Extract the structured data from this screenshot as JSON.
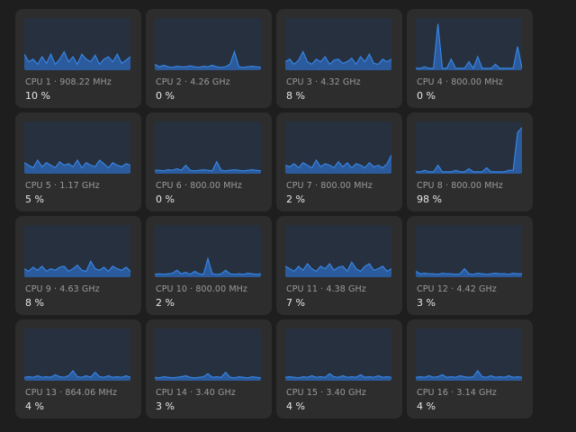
{
  "colors": {
    "background": "#1e1e1e",
    "card": "#2d2d2d",
    "graph_bg": "#27303e",
    "line": "#3584e4",
    "fill": "#2b5b9c"
  },
  "cpus": [
    {
      "label": "CPU 1 · 908.22 MHz",
      "usage": "10 %",
      "history": [
        0.3,
        0.15,
        0.2,
        0.1,
        0.25,
        0.12,
        0.3,
        0.1,
        0.2,
        0.35,
        0.15,
        0.25,
        0.1,
        0.3,
        0.2,
        0.15,
        0.28,
        0.1,
        0.2,
        0.25,
        0.15,
        0.3,
        0.12,
        0.18,
        0.25
      ]
    },
    {
      "label": "CPU 2 · 4.26 GHz",
      "usage": "0 %",
      "history": [
        0.1,
        0.05,
        0.08,
        0.05,
        0.04,
        0.06,
        0.05,
        0.05,
        0.07,
        0.05,
        0.04,
        0.06,
        0.05,
        0.08,
        0.05,
        0.04,
        0.05,
        0.1,
        0.35,
        0.05,
        0.04,
        0.05,
        0.06,
        0.05,
        0.04
      ]
    },
    {
      "label": "CPU 3 · 4.32 GHz",
      "usage": "8 %",
      "history": [
        0.15,
        0.2,
        0.1,
        0.18,
        0.35,
        0.15,
        0.1,
        0.2,
        0.15,
        0.25,
        0.1,
        0.18,
        0.2,
        0.12,
        0.15,
        0.22,
        0.1,
        0.25,
        0.15,
        0.3,
        0.12,
        0.1,
        0.2,
        0.15,
        0.2
      ]
    },
    {
      "label": "CPU 4 · 800.00 MHz",
      "usage": "0 %",
      "history": [
        0.02,
        0.02,
        0.05,
        0.02,
        0.02,
        0.9,
        0.02,
        0.02,
        0.2,
        0.02,
        0.02,
        0.02,
        0.15,
        0.02,
        0.25,
        0.02,
        0.02,
        0.02,
        0.1,
        0.02,
        0.02,
        0.02,
        0.02,
        0.45,
        0.02
      ]
    },
    {
      "label": "CPU 5 · 1.17 GHz",
      "usage": "5 %",
      "history": [
        0.2,
        0.15,
        0.1,
        0.25,
        0.12,
        0.2,
        0.15,
        0.1,
        0.22,
        0.15,
        0.18,
        0.12,
        0.25,
        0.1,
        0.2,
        0.15,
        0.12,
        0.25,
        0.18,
        0.1,
        0.2,
        0.15,
        0.12,
        0.18,
        0.15
      ]
    },
    {
      "label": "CPU 6 · 800.00 MHz",
      "usage": "0 %",
      "history": [
        0.05,
        0.05,
        0.04,
        0.06,
        0.05,
        0.08,
        0.05,
        0.15,
        0.05,
        0.04,
        0.05,
        0.06,
        0.05,
        0.04,
        0.22,
        0.05,
        0.04,
        0.05,
        0.06,
        0.05,
        0.04,
        0.05,
        0.06,
        0.05,
        0.04
      ]
    },
    {
      "label": "CPU 7 · 800.00 MHz",
      "usage": "2 %",
      "history": [
        0.15,
        0.12,
        0.18,
        0.1,
        0.2,
        0.15,
        0.1,
        0.25,
        0.12,
        0.18,
        0.15,
        0.1,
        0.22,
        0.12,
        0.2,
        0.1,
        0.18,
        0.15,
        0.1,
        0.2,
        0.12,
        0.15,
        0.1,
        0.18,
        0.35
      ]
    },
    {
      "label": "CPU 8 · 800.00 MHz",
      "usage": "98 %",
      "history": [
        0.02,
        0.02,
        0.05,
        0.02,
        0.02,
        0.15,
        0.02,
        0.02,
        0.02,
        0.05,
        0.02,
        0.02,
        0.08,
        0.02,
        0.02,
        0.02,
        0.1,
        0.02,
        0.02,
        0.02,
        0.02,
        0.05,
        0.05,
        0.8,
        0.9
      ]
    },
    {
      "label": "CPU 9 · 4.63 GHz",
      "usage": "8 %",
      "history": [
        0.15,
        0.1,
        0.18,
        0.12,
        0.2,
        0.1,
        0.15,
        0.12,
        0.18,
        0.2,
        0.1,
        0.15,
        0.22,
        0.12,
        0.1,
        0.3,
        0.15,
        0.12,
        0.18,
        0.1,
        0.2,
        0.15,
        0.12,
        0.18,
        0.1
      ]
    },
    {
      "label": "CPU 10 · 800.00 MHz",
      "usage": "2 %",
      "history": [
        0.04,
        0.05,
        0.04,
        0.05,
        0.06,
        0.12,
        0.05,
        0.08,
        0.04,
        0.1,
        0.05,
        0.04,
        0.35,
        0.05,
        0.04,
        0.05,
        0.12,
        0.05,
        0.04,
        0.05,
        0.04,
        0.06,
        0.05,
        0.04,
        0.05
      ]
    },
    {
      "label": "CPU 11 · 4.38 GHz",
      "usage": "7 %",
      "history": [
        0.2,
        0.15,
        0.1,
        0.2,
        0.12,
        0.25,
        0.15,
        0.1,
        0.2,
        0.15,
        0.25,
        0.12,
        0.18,
        0.2,
        0.1,
        0.28,
        0.15,
        0.1,
        0.2,
        0.25,
        0.12,
        0.15,
        0.2,
        0.1,
        0.15
      ]
    },
    {
      "label": "CPU 12 · 4.42 GHz",
      "usage": "3 %",
      "history": [
        0.1,
        0.05,
        0.06,
        0.05,
        0.05,
        0.04,
        0.06,
        0.05,
        0.05,
        0.04,
        0.05,
        0.15,
        0.05,
        0.04,
        0.06,
        0.05,
        0.04,
        0.05,
        0.06,
        0.05,
        0.05,
        0.04,
        0.06,
        0.05,
        0.05
      ]
    },
    {
      "label": "CPU 13 · 864.06 MHz",
      "usage": "4 %",
      "history": [
        0.05,
        0.06,
        0.05,
        0.08,
        0.05,
        0.06,
        0.05,
        0.1,
        0.06,
        0.05,
        0.08,
        0.18,
        0.06,
        0.05,
        0.08,
        0.05,
        0.15,
        0.06,
        0.05,
        0.08,
        0.05,
        0.06,
        0.05,
        0.08,
        0.05
      ]
    },
    {
      "label": "CPU 14 · 3.40 GHz",
      "usage": "3 %",
      "history": [
        0.05,
        0.04,
        0.06,
        0.05,
        0.04,
        0.05,
        0.06,
        0.08,
        0.05,
        0.04,
        0.05,
        0.06,
        0.12,
        0.05,
        0.06,
        0.05,
        0.15,
        0.05,
        0.04,
        0.06,
        0.05,
        0.04,
        0.06,
        0.05,
        0.04
      ]
    },
    {
      "label": "CPU 15 · 3.40 GHz",
      "usage": "4 %",
      "history": [
        0.05,
        0.06,
        0.05,
        0.04,
        0.06,
        0.05,
        0.08,
        0.05,
        0.06,
        0.05,
        0.12,
        0.06,
        0.05,
        0.08,
        0.05,
        0.06,
        0.05,
        0.1,
        0.05,
        0.06,
        0.05,
        0.08,
        0.05,
        0.06,
        0.05
      ]
    },
    {
      "label": "CPU 16 · 3.14 GHz",
      "usage": "4 %",
      "history": [
        0.05,
        0.06,
        0.05,
        0.08,
        0.05,
        0.06,
        0.1,
        0.05,
        0.06,
        0.05,
        0.08,
        0.06,
        0.05,
        0.06,
        0.18,
        0.06,
        0.05,
        0.08,
        0.05,
        0.06,
        0.05,
        0.08,
        0.05,
        0.06,
        0.05
      ]
    }
  ]
}
